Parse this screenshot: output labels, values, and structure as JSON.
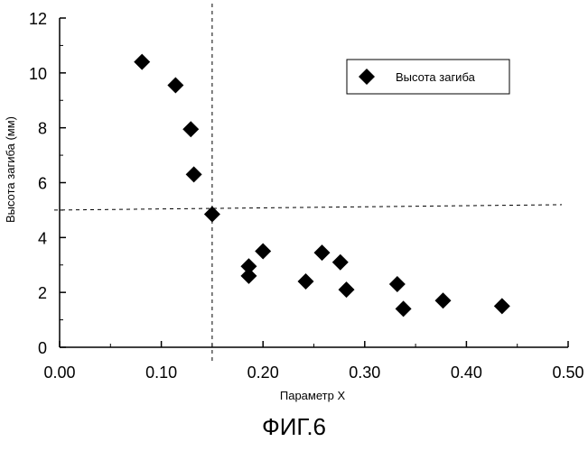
{
  "chart_data": {
    "type": "scatter",
    "xlabel": "Параметр X",
    "ylabel": "Высота загиба (мм)",
    "xlim": [
      0.0,
      0.5
    ],
    "ylim": [
      0,
      12
    ],
    "x_ticks": [
      "0.00",
      "0.10",
      "0.20",
      "0.30",
      "0.40",
      "0.50"
    ],
    "y_ticks": [
      "0",
      "2",
      "4",
      "6",
      "8",
      "10",
      "12"
    ],
    "grid": false,
    "legend_position": "top-right",
    "reference_lines": {
      "x": 0.15,
      "y": 5.0,
      "style": "dashed"
    },
    "series": [
      {
        "name": "Высота загиба",
        "marker": "diamond",
        "color": "#000000",
        "points": [
          {
            "x": 0.081,
            "y": 10.4
          },
          {
            "x": 0.114,
            "y": 9.55
          },
          {
            "x": 0.129,
            "y": 7.95
          },
          {
            "x": 0.132,
            "y": 6.3
          },
          {
            "x": 0.15,
            "y": 4.85
          },
          {
            "x": 0.186,
            "y": 2.95
          },
          {
            "x": 0.186,
            "y": 2.6
          },
          {
            "x": 0.2,
            "y": 3.5
          },
          {
            "x": 0.242,
            "y": 2.4
          },
          {
            "x": 0.258,
            "y": 3.45
          },
          {
            "x": 0.276,
            "y": 3.1
          },
          {
            "x": 0.282,
            "y": 2.1
          },
          {
            "x": 0.332,
            "y": 2.3
          },
          {
            "x": 0.338,
            "y": 1.4
          },
          {
            "x": 0.377,
            "y": 1.7
          },
          {
            "x": 0.435,
            "y": 1.5
          }
        ]
      }
    ]
  },
  "caption": "ФИГ.6"
}
